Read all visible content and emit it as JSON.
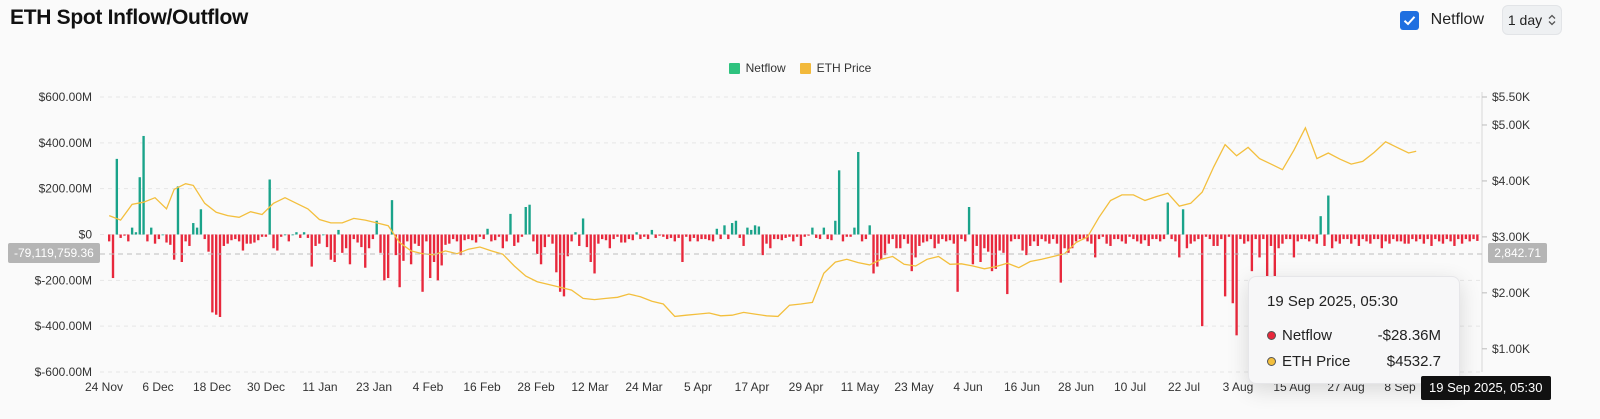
{
  "header": {
    "title": "ETH Spot Inflow/Outflow",
    "netflow_toggle_label": "Netflow",
    "netflow_checked": true,
    "interval_value": "1 day"
  },
  "colors": {
    "positive": "#1aa38a",
    "negative": "#e8283c",
    "price": "#f3bf3d",
    "legend_netflow": "#2ec27e",
    "legend_price": "#f2b93b"
  },
  "tooltip": {
    "date": "19 Sep 2025, 05:30",
    "rows": [
      {
        "name": "Netflow",
        "value": "-$28.36M",
        "color": "#e8283c"
      },
      {
        "name": "ETH Price",
        "value": "$4532.7",
        "color": "#f3bf3d"
      }
    ]
  },
  "crosshair": {
    "left_value_label": "-79,119,759.36",
    "right_value_label": "2,842.71",
    "date_label": "19 Sep 2025, 05:30"
  },
  "chart_data": {
    "type": "bar",
    "legend": [
      {
        "name": "Netflow",
        "color": "#2ec27e"
      },
      {
        "name": "ETH Price",
        "color": "#f2b93b"
      }
    ],
    "x_tick_labels": [
      "24 Nov",
      "6 Dec",
      "18 Dec",
      "30 Dec",
      "11 Jan",
      "23 Jan",
      "4 Feb",
      "16 Feb",
      "28 Feb",
      "12 Mar",
      "24 Mar",
      "5 Apr",
      "17 Apr",
      "29 Apr",
      "11 May",
      "23 May",
      "4 Jun",
      "16 Jun",
      "28 Jun",
      "10 Jul",
      "22 Jul",
      "3 Aug",
      "15 Aug",
      "27 Aug",
      "8 Sep"
    ],
    "y_left": {
      "ticks": [
        600,
        400,
        200,
        0,
        -200,
        -400,
        -600
      ],
      "tick_labels": [
        "$600.00M",
        "$400.00M",
        "$200.00M",
        "$0",
        "$-200.00M",
        "$-400.00M",
        "$-600.00M"
      ],
      "range": [
        -600,
        600
      ],
      "unit": "M USD"
    },
    "y_right": {
      "ticks": [
        5500,
        5000,
        4000,
        3000,
        2000,
        1000
      ],
      "tick_labels": [
        "$5.50K",
        "$5.00K",
        "$4.00K",
        "$3.00K",
        "$2.00K",
        "$1.00K"
      ],
      "range": [
        800,
        5500
      ]
    },
    "grid": true,
    "series": [
      {
        "name": "Netflow",
        "type": "bar",
        "unit": "M USD",
        "values": [
          -30,
          -190,
          330,
          -15,
          -5,
          -30,
          30,
          10,
          250,
          430,
          -30,
          30,
          -40,
          -20,
          0,
          -35,
          -45,
          -110,
          210,
          -120,
          -30,
          -50,
          50,
          30,
          110,
          -20,
          -75,
          -340,
          -350,
          -360,
          -50,
          -40,
          -25,
          -20,
          -30,
          -70,
          -40,
          -40,
          -35,
          -25,
          -10,
          -10,
          240,
          -60,
          -70,
          -10,
          0,
          -30,
          0,
          10,
          -15,
          10,
          -15,
          -140,
          -50,
          -40,
          0,
          -55,
          -110,
          -120,
          20,
          -80,
          -60,
          -130,
          -20,
          -35,
          -55,
          -145,
          -60,
          -20,
          60,
          -80,
          -200,
          -190,
          150,
          -90,
          -230,
          -115,
          -30,
          -130,
          -40,
          -50,
          -250,
          -30,
          -190,
          -120,
          -200,
          -135,
          -45,
          -40,
          -20,
          -30,
          -90,
          -25,
          -20,
          -25,
          -35,
          -10,
          -20,
          25,
          -30,
          -25,
          -10,
          -60,
          -30,
          90,
          -50,
          -35,
          -10,
          120,
          130,
          -30,
          -85,
          -130,
          -55,
          -10,
          -40,
          -165,
          -250,
          -270,
          -95,
          -30,
          10,
          -50,
          70,
          -55,
          -120,
          -170,
          -40,
          -20,
          -25,
          -60,
          -20,
          -10,
          -35,
          -35,
          -20,
          -25,
          10,
          -20,
          -10,
          -20,
          20,
          -15,
          -5,
          -10,
          -20,
          -15,
          -30,
          -15,
          -120,
          -10,
          -30,
          -15,
          -30,
          -20,
          -20,
          -25,
          -30,
          25,
          -20,
          40,
          -20,
          50,
          60,
          -15,
          -50,
          30,
          20,
          40,
          35,
          -90,
          -40,
          -60,
          -20,
          -20,
          -25,
          -15,
          -10,
          -30,
          -10,
          -50,
          -10,
          -5,
          30,
          -15,
          -20,
          30,
          -20,
          -25,
          60,
          280,
          -30,
          -10,
          -10,
          30,
          360,
          -30,
          -20,
          40,
          -170,
          -140,
          -110,
          -90,
          -40,
          -20,
          -60,
          -60,
          -20,
          -40,
          -160,
          -100,
          -50,
          -35,
          -30,
          -20,
          -60,
          -40,
          -20,
          -30,
          -25,
          -40,
          -250,
          -20,
          -30,
          120,
          -130,
          -50,
          -120,
          -60,
          -75,
          -160,
          -150,
          -70,
          -80,
          -260,
          -30,
          -20,
          -20,
          -70,
          -90,
          -50,
          -30,
          -50,
          -20,
          -30,
          -40,
          -20,
          -40,
          -210,
          -60,
          -80,
          -60,
          -30,
          -20,
          -20,
          -30,
          -40,
          -100,
          -20,
          -10,
          -40,
          -50,
          -20,
          -20,
          -30,
          -40,
          -10,
          -20,
          -30,
          -40,
          -25,
          -50,
          -20,
          -20,
          -30,
          -20,
          140,
          -20,
          -30,
          -100,
          110,
          -60,
          -40,
          -30,
          -20,
          -400,
          -10,
          -20,
          -50,
          -50,
          -20,
          -270,
          -10,
          -300,
          -440,
          -20,
          -40,
          -30,
          -160,
          -20,
          -100,
          -20,
          -190,
          -50,
          -260,
          -60,
          -40,
          -20,
          -20,
          -100,
          -30,
          -20,
          -20,
          -30,
          -20,
          -40,
          80,
          -50,
          170,
          -60,
          -30,
          -40,
          -20,
          -20,
          -40,
          -20,
          -50,
          -20,
          -30,
          -40,
          -20,
          -20,
          -60,
          -30,
          -40,
          -20,
          -30,
          -30,
          -40,
          -40,
          -20,
          -30,
          -20,
          -40,
          -20,
          -50,
          -20,
          -30,
          -40,
          -20,
          -30,
          -50,
          -20,
          -40,
          -20,
          -30,
          -20,
          -28
        ]
      },
      {
        "name": "ETH Price",
        "type": "line",
        "unit": "USD",
        "points": [
          [
            0,
            3380
          ],
          [
            3,
            3300
          ],
          [
            6,
            3580
          ],
          [
            9,
            3620
          ],
          [
            12,
            3700
          ],
          [
            15,
            3500
          ],
          [
            17,
            3850
          ],
          [
            20,
            3950
          ],
          [
            22,
            3920
          ],
          [
            25,
            3600
          ],
          [
            28,
            3440
          ],
          [
            31,
            3380
          ],
          [
            34,
            3350
          ],
          [
            37,
            3450
          ],
          [
            40,
            3400
          ],
          [
            43,
            3600
          ],
          [
            46,
            3700
          ],
          [
            49,
            3600
          ],
          [
            52,
            3500
          ],
          [
            55,
            3310
          ],
          [
            58,
            3250
          ],
          [
            61,
            3250
          ],
          [
            64,
            3330
          ],
          [
            67,
            3300
          ],
          [
            70,
            3250
          ],
          [
            73,
            3200
          ],
          [
            76,
            2900
          ],
          [
            79,
            2750
          ],
          [
            82,
            2700
          ],
          [
            85,
            2680
          ],
          [
            88,
            2750
          ],
          [
            91,
            2700
          ],
          [
            94,
            2780
          ],
          [
            97,
            2820
          ],
          [
            100,
            2750
          ],
          [
            103,
            2690
          ],
          [
            106,
            2480
          ],
          [
            109,
            2300
          ],
          [
            112,
            2200
          ],
          [
            115,
            2150
          ],
          [
            118,
            2100
          ],
          [
            121,
            2050
          ],
          [
            124,
            1900
          ],
          [
            127,
            1880
          ],
          [
            130,
            1900
          ],
          [
            133,
            1920
          ],
          [
            136,
            1980
          ],
          [
            139,
            1930
          ],
          [
            142,
            1850
          ],
          [
            145,
            1800
          ],
          [
            148,
            1580
          ],
          [
            151,
            1600
          ],
          [
            154,
            1620
          ],
          [
            157,
            1640
          ],
          [
            160,
            1590
          ],
          [
            163,
            1600
          ],
          [
            166,
            1650
          ],
          [
            169,
            1620
          ],
          [
            172,
            1590
          ],
          [
            175,
            1580
          ],
          [
            178,
            1780
          ],
          [
            181,
            1800
          ],
          [
            184,
            1830
          ],
          [
            187,
            2350
          ],
          [
            190,
            2550
          ],
          [
            193,
            2600
          ],
          [
            196,
            2540
          ],
          [
            199,
            2500
          ],
          [
            202,
            2600
          ],
          [
            205,
            2650
          ],
          [
            208,
            2510
          ],
          [
            211,
            2480
          ],
          [
            214,
            2600
          ],
          [
            217,
            2650
          ],
          [
            220,
            2510
          ],
          [
            223,
            2520
          ],
          [
            226,
            2480
          ],
          [
            229,
            2430
          ],
          [
            232,
            2470
          ],
          [
            235,
            2530
          ],
          [
            238,
            2450
          ],
          [
            241,
            2560
          ],
          [
            244,
            2600
          ],
          [
            247,
            2650
          ],
          [
            250,
            2700
          ],
          [
            253,
            2900
          ],
          [
            256,
            3000
          ],
          [
            259,
            3350
          ],
          [
            262,
            3650
          ],
          [
            265,
            3750
          ],
          [
            268,
            3750
          ],
          [
            271,
            3650
          ],
          [
            274,
            3720
          ],
          [
            277,
            3780
          ],
          [
            280,
            3550
          ],
          [
            283,
            3600
          ],
          [
            286,
            3800
          ],
          [
            289,
            4250
          ],
          [
            292,
            4650
          ],
          [
            295,
            4450
          ],
          [
            298,
            4600
          ],
          [
            301,
            4400
          ],
          [
            304,
            4300
          ],
          [
            307,
            4200
          ],
          [
            310,
            4550
          ],
          [
            313,
            4950
          ],
          [
            316,
            4400
          ],
          [
            319,
            4500
          ],
          [
            322,
            4390
          ],
          [
            325,
            4300
          ],
          [
            328,
            4350
          ],
          [
            331,
            4510
          ],
          [
            334,
            4700
          ],
          [
            337,
            4600
          ],
          [
            340,
            4500
          ],
          [
            342,
            4532
          ]
        ]
      }
    ]
  }
}
